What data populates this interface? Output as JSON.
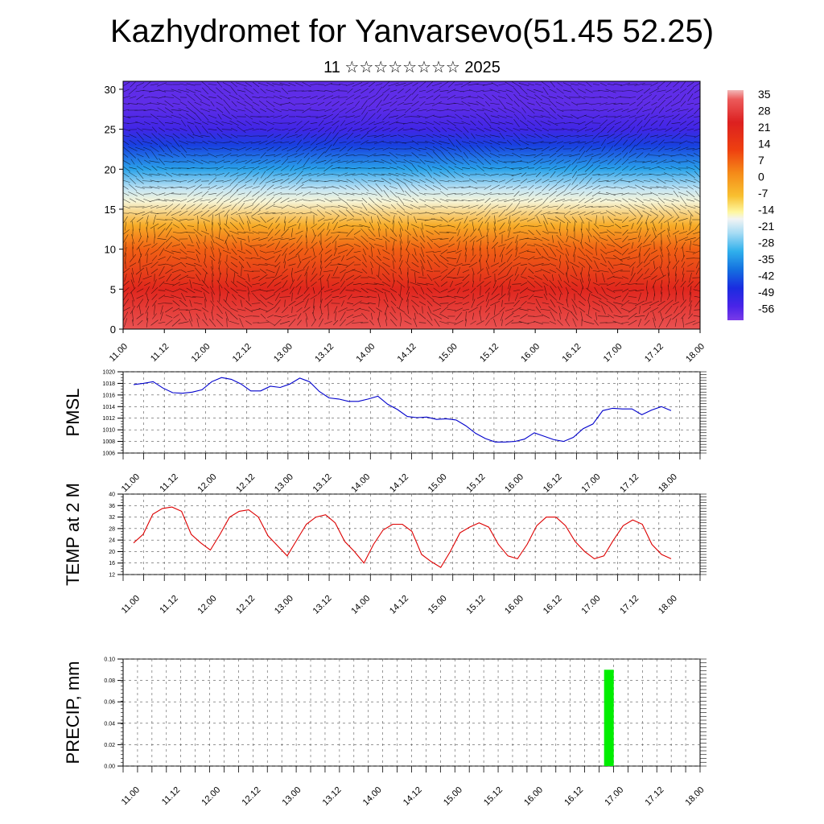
{
  "title": "Kazhydromet for Yanvarsevo(51.45 52.25)",
  "subtitle": "11 ☆☆☆☆☆☆☆☆ 2025",
  "time_labels": [
    "11.00",
    "11.12",
    "12.00",
    "12.12",
    "13.00",
    "13.12",
    "14.00",
    "14.12",
    "15.00",
    "15.12",
    "16.00",
    "16.12",
    "17.00",
    "17.12",
    "18.00"
  ],
  "chart_data": [
    {
      "type": "heatmap",
      "title": "",
      "xlabel": "",
      "ylabel": "",
      "x_categories": [
        "11.00",
        "11.12",
        "12.00",
        "12.12",
        "13.00",
        "13.12",
        "14.00",
        "14.12",
        "15.00",
        "15.12",
        "16.00",
        "16.12",
        "17.00",
        "17.12",
        "18.00"
      ],
      "y_ticks": [
        0,
        5,
        10,
        15,
        20,
        25,
        30
      ],
      "ylim": [
        0,
        31
      ],
      "colorbar_labels": [
        "35",
        "28",
        "21",
        "14",
        "7",
        "0",
        "-7",
        "-14",
        "-21",
        "-28",
        "-35",
        "-42",
        "-49",
        "-56"
      ],
      "profile": [
        {
          "y": 0,
          "value": 30
        },
        {
          "y": 5,
          "value": 22
        },
        {
          "y": 10,
          "value": 10
        },
        {
          "y": 13,
          "value": 0
        },
        {
          "y": 16,
          "value": -10
        },
        {
          "y": 17.5,
          "value": -16
        },
        {
          "y": 20,
          "value": -30
        },
        {
          "y": 23,
          "value": -45
        },
        {
          "y": 25,
          "value": -52
        },
        {
          "y": 28,
          "value": -56
        },
        {
          "y": 31,
          "value": -56
        }
      ],
      "overlay": "wind streamlines/arrows"
    },
    {
      "type": "line",
      "ylabel": "PMSL",
      "ylim": [
        1006,
        1020
      ],
      "y_ticks": [
        1006,
        1008,
        1010,
        1012,
        1014,
        1016,
        1018,
        1020
      ],
      "color": "#0000cc",
      "series": [
        {
          "values": [
            1017.8,
            1018.0,
            1018.3,
            1017.2,
            1016.4,
            1016.3,
            1016.5,
            1016.9,
            1018.3,
            1019.0,
            1018.7,
            1017.9,
            1016.7,
            1016.7,
            1017.5,
            1017.3,
            1017.9,
            1018.9,
            1018.3,
            1016.6,
            1015.5,
            1015.3,
            1014.9,
            1014.9,
            1015.3,
            1015.8,
            1014.4,
            1013.5,
            1012.3,
            1012.1,
            1012.2,
            1011.8,
            1011.9,
            1011.7,
            1010.7,
            1009.4,
            1008.5,
            1007.9,
            1007.9,
            1008.0,
            1008.4,
            1009.5,
            1008.9,
            1008.3,
            1008.0,
            1008.7,
            1010.2,
            1011.0,
            1013.3,
            1013.7,
            1013.6,
            1013.6,
            1012.6,
            1013.4,
            1014.0,
            1013.3
          ]
        }
      ]
    },
    {
      "type": "line",
      "ylabel": "TEMP at 2 M",
      "ylim": [
        12,
        40
      ],
      "y_ticks": [
        12,
        16,
        20,
        24,
        28,
        32,
        36,
        40
      ],
      "color": "#dd0000",
      "series": [
        {
          "values": [
            23,
            26,
            33,
            35,
            35.5,
            34,
            26,
            23,
            20.5,
            26,
            32,
            34,
            34.5,
            32,
            25.5,
            22,
            18.5,
            24,
            29.5,
            32,
            32.8,
            30,
            23.5,
            20,
            16,
            22.5,
            27.5,
            29.5,
            29.5,
            27,
            19,
            16.5,
            14.5,
            20,
            26.5,
            28.5,
            30,
            28.5,
            22.5,
            18.5,
            17.5,
            22.5,
            29,
            32,
            32,
            29,
            23.5,
            20,
            17.5,
            18.5,
            24,
            29,
            31,
            29.5,
            22.5,
            19,
            17.5
          ]
        }
      ]
    },
    {
      "type": "bar",
      "ylabel": "PRECIP, mm",
      "ylim": [
        0,
        0.1
      ],
      "y_ticks": [
        "0.00",
        "0.02",
        "0.04",
        "0.06",
        "0.08",
        "0.10"
      ],
      "color": "#00ee00",
      "bars": [
        {
          "x": "16.21",
          "value": 0.09
        }
      ]
    }
  ]
}
